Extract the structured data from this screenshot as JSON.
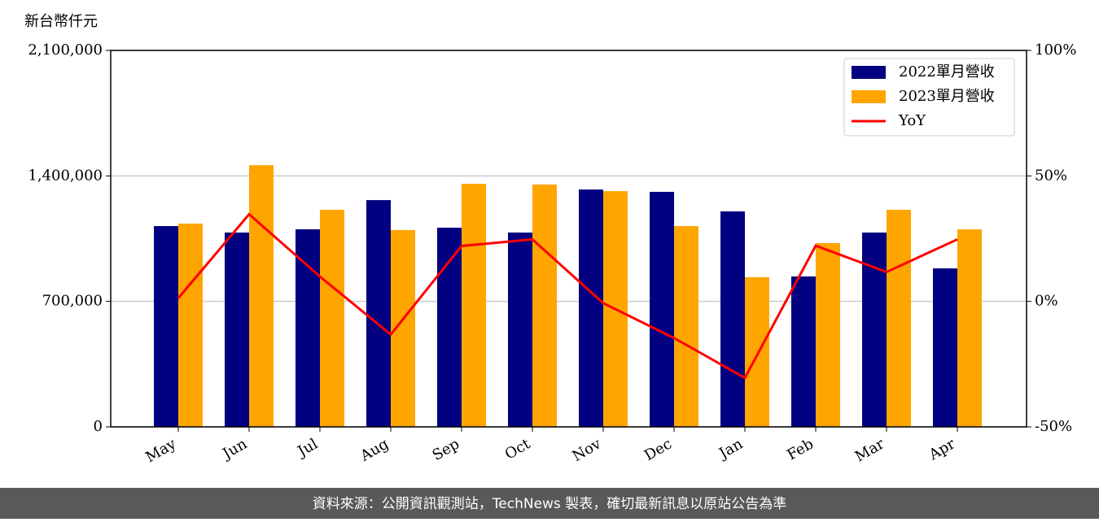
{
  "chart_data": {
    "type": "bar_line",
    "y_axis_label": "新台幣仟元",
    "footer": "資料來源：公開資訊觀測站，TechNews 製表，確切最新訊息以原站公告為準",
    "categories": [
      "May",
      "Jun",
      "Jul",
      "Aug",
      "Sep",
      "Oct",
      "Nov",
      "Dec",
      "Jan",
      "Feb",
      "Mar",
      "Apr"
    ],
    "series": [
      {
        "name": "2022單月營收",
        "color": "#000080",
        "values": [
          1120000,
          1084000,
          1102000,
          1265000,
          1111000,
          1084000,
          1324000,
          1311000,
          1202000,
          839000,
          1084000,
          884000
        ]
      },
      {
        "name": "2023單月營收",
        "color": "#ffa500",
        "values": [
          1134000,
          1460000,
          1211000,
          1098000,
          1356000,
          1352000,
          1315000,
          1120000,
          835000,
          1025000,
          1211000,
          1102000
        ]
      },
      {
        "name": "YoY",
        "color": "#ff0000",
        "axis": "y2",
        "values": [
          1.3,
          34.7,
          9.9,
          -13.2,
          22.1,
          24.7,
          -0.7,
          -14.6,
          -30.5,
          22.2,
          11.7,
          24.7
        ]
      }
    ],
    "ylim": [
      0,
      2100000
    ],
    "yticks": [
      0,
      {
        "value": 700000,
        "label": "700,000"
      },
      {
        "value": 1400000,
        "label": "1,400,000"
      },
      {
        "value": 2100000,
        "label": "2,100,000"
      }
    ],
    "y2lim": [
      -50,
      100
    ],
    "y2ticks": [
      {
        "value": -50,
        "label": "-50%"
      },
      {
        "value": 0,
        "label": "0%"
      },
      {
        "value": 50,
        "label": "50%"
      },
      {
        "value": 100,
        "label": "100%"
      }
    ],
    "grid": true,
    "legend": "upper right"
  }
}
